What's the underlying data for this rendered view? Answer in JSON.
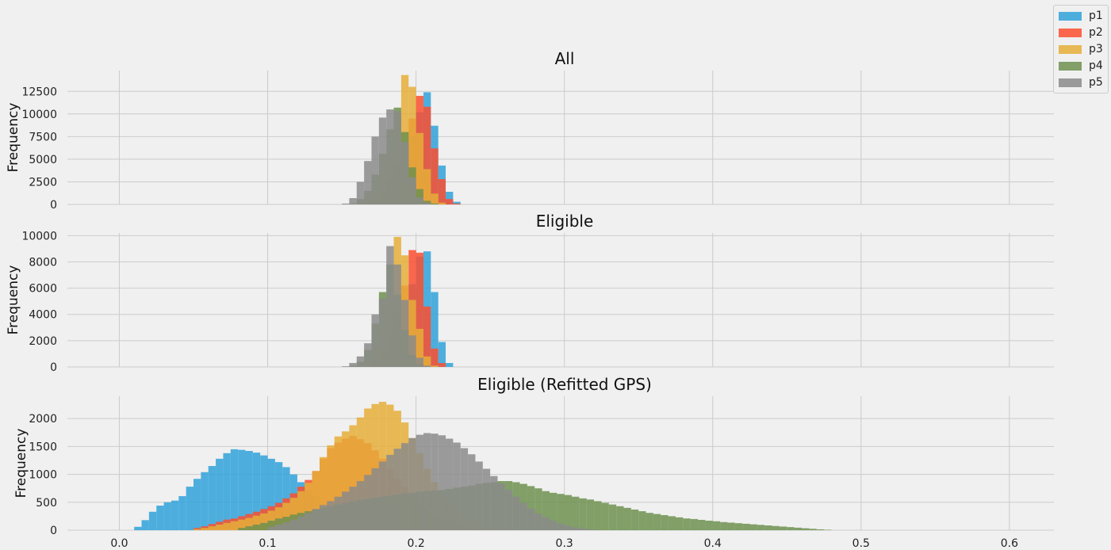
{
  "legend": [
    {
      "name": "p1",
      "color": "#30a2da"
    },
    {
      "name": "p2",
      "color": "#fc4f30"
    },
    {
      "name": "p3",
      "color": "#e5ae38"
    },
    {
      "name": "p4",
      "color": "#6d904f"
    },
    {
      "name": "p5",
      "color": "#8b8b8b"
    }
  ],
  "chart_data": [
    {
      "type": "histogram",
      "title": "All",
      "ylabel": "Frequency",
      "ylim": [
        0,
        14800
      ],
      "yticks": [
        0,
        2500,
        5000,
        7500,
        10000,
        12500
      ],
      "xlim": [
        -0.035,
        0.63
      ],
      "xticks": [
        0.0,
        0.1,
        0.2,
        0.3,
        0.4,
        0.5,
        0.6
      ],
      "show_xtick_labels": false,
      "bin_width": 0.005,
      "grid": true,
      "series": [
        {
          "name": "p1",
          "x_start": 0.17,
          "values": [
            100,
            700,
            1800,
            3700,
            5500,
            7600,
            10200,
            12400,
            8700,
            4300,
            1400,
            300
          ]
        },
        {
          "name": "p2",
          "x_start": 0.165,
          "values": [
            80,
            500,
            1400,
            2900,
            4500,
            6800,
            9500,
            12000,
            10800,
            6200,
            2800,
            600,
            100
          ]
        },
        {
          "name": "p3",
          "x_start": 0.16,
          "values": [
            100,
            600,
            1600,
            3400,
            5700,
            9700,
            14300,
            13000,
            7900,
            3900,
            1200,
            200
          ]
        },
        {
          "name": "p4",
          "x_start": 0.155,
          "values": [
            100,
            600,
            1500,
            3300,
            5600,
            8300,
            10700,
            8000,
            4100,
            1700,
            400,
            100
          ]
        },
        {
          "name": "p5",
          "x_start": 0.15,
          "values": [
            100,
            700,
            2500,
            4800,
            7500,
            9600,
            10500,
            10300,
            6900,
            3000,
            800,
            200
          ]
        }
      ]
    },
    {
      "type": "histogram",
      "title": "Eligible",
      "ylabel": "Frequency",
      "ylim": [
        0,
        10200
      ],
      "yticks": [
        0,
        2000,
        4000,
        6000,
        8000,
        10000
      ],
      "xlim": [
        -0.035,
        0.63
      ],
      "xticks": [
        0.0,
        0.1,
        0.2,
        0.3,
        0.4,
        0.5,
        0.6
      ],
      "show_xtick_labels": false,
      "bin_width": 0.005,
      "grid": true,
      "series": [
        {
          "name": "p1",
          "x_start": 0.17,
          "values": [
            80,
            400,
            1200,
            2700,
            4400,
            6300,
            8400,
            8800,
            5700,
            1900,
            300
          ]
        },
        {
          "name": "p2",
          "x_start": 0.165,
          "values": [
            50,
            300,
            1000,
            2400,
            4200,
            6200,
            8900,
            8700,
            4600,
            1400,
            300
          ]
        },
        {
          "name": "p3",
          "x_start": 0.16,
          "values": [
            80,
            500,
            1500,
            3200,
            5500,
            9900,
            8500,
            5100,
            2900,
            800,
            100
          ]
        },
        {
          "name": "p4",
          "x_start": 0.155,
          "values": [
            100,
            400,
            1300,
            3300,
            5700,
            7800,
            5500,
            2800,
            900,
            200
          ]
        },
        {
          "name": "p5",
          "x_start": 0.15,
          "values": [
            50,
            300,
            800,
            1800,
            4000,
            5200,
            9200,
            7800,
            5100,
            2400,
            700,
            100
          ]
        }
      ]
    },
    {
      "type": "histogram",
      "title": "Eligible (Refitted GPS)",
      "ylabel": "Frequency",
      "ylim": [
        0,
        2400
      ],
      "yticks": [
        0,
        500,
        1000,
        1500,
        2000
      ],
      "xlim": [
        -0.035,
        0.63
      ],
      "xticks": [
        0.0,
        0.1,
        0.2,
        0.3,
        0.4,
        0.5,
        0.6
      ],
      "xtick_labels": [
        "0.0",
        "0.1",
        "0.2",
        "0.3",
        "0.4",
        "0.5",
        "0.6"
      ],
      "show_xtick_labels": true,
      "bin_width": 0.005,
      "grid": true,
      "series": [
        {
          "name": "p1",
          "x_start": 0.01,
          "values": [
            60,
            180,
            330,
            440,
            500,
            530,
            610,
            780,
            920,
            1040,
            1150,
            1280,
            1380,
            1450,
            1440,
            1420,
            1390,
            1340,
            1280,
            1220,
            1130,
            1000,
            860,
            720,
            600,
            480,
            380,
            300,
            230,
            170,
            120,
            80,
            50,
            30,
            15,
            8
          ]
        },
        {
          "name": "p2",
          "x_start": 0.05,
          "values": [
            40,
            70,
            110,
            150,
            190,
            210,
            250,
            290,
            330,
            380,
            430,
            490,
            570,
            660,
            780,
            900,
            1060,
            1280,
            1470,
            1570,
            1640,
            1690,
            1630,
            1560,
            1430,
            1280,
            1100,
            930,
            770,
            620,
            490,
            380,
            290,
            210,
            150,
            100,
            60,
            30,
            15,
            8
          ]
        },
        {
          "name": "p3",
          "x_start": 0.05,
          "values": [
            20,
            40,
            70,
            100,
            130,
            160,
            190,
            220,
            260,
            300,
            350,
            410,
            490,
            580,
            700,
            850,
            1060,
            1310,
            1520,
            1680,
            1770,
            1880,
            2020,
            2180,
            2260,
            2300,
            2250,
            2140,
            1930,
            1650,
            1380,
            1100,
            860,
            660,
            490,
            350,
            240,
            160,
            100,
            60,
            30,
            15
          ]
        },
        {
          "name": "p4",
          "x_start": 0.08,
          "values": [
            40,
            70,
            100,
            130,
            170,
            210,
            240,
            280,
            310,
            340,
            370,
            400,
            430,
            460,
            490,
            520,
            540,
            560,
            580,
            600,
            620,
            640,
            660,
            670,
            690,
            700,
            710,
            720,
            740,
            760,
            780,
            800,
            830,
            850,
            860,
            880,
            880,
            860,
            830,
            790,
            750,
            700,
            670,
            650,
            630,
            600,
            570,
            550,
            520,
            490,
            460,
            430,
            400,
            370,
            340,
            310,
            290,
            270,
            250,
            230,
            210,
            200,
            185,
            170,
            160,
            145,
            135,
            125,
            115,
            105,
            95,
            85,
            75,
            65,
            55,
            45,
            35,
            25,
            15,
            8
          ]
        },
        {
          "name": "p5",
          "x_start": 0.1,
          "values": [
            60,
            100,
            140,
            190,
            250,
            310,
            380,
            450,
            520,
            600,
            690,
            780,
            880,
            990,
            1110,
            1230,
            1350,
            1460,
            1560,
            1650,
            1710,
            1740,
            1730,
            1700,
            1640,
            1570,
            1470,
            1360,
            1230,
            1100,
            970,
            840,
            720,
            600,
            490,
            390,
            300,
            230,
            170,
            120,
            80,
            50,
            30,
            15
          ]
        }
      ]
    }
  ]
}
